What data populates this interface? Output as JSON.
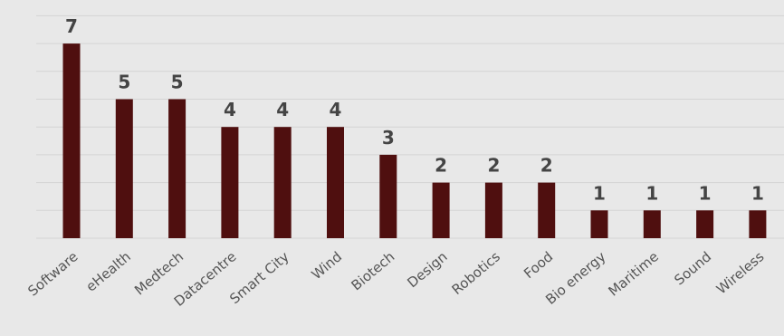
{
  "chart_data": {
    "type": "bar",
    "categories": [
      "Software",
      "eHealth",
      "Medtech",
      "Datacentre",
      "Smart City",
      "Wind",
      "Biotech",
      "Design",
      "Robotics",
      "Food",
      "Bio energy",
      "Maritime",
      "Sound",
      "Wireless"
    ],
    "values": [
      7,
      5,
      5,
      4,
      4,
      4,
      3,
      2,
      2,
      2,
      1,
      1,
      1,
      1
    ],
    "ylim": [
      0,
      8
    ],
    "grid": true,
    "yaxis_visible": false,
    "data_labels": true,
    "colors": {
      "bar": "#4f0f0f",
      "background": "#e8e8e8",
      "grid": "#d4d4d4",
      "label": "#444444"
    }
  }
}
